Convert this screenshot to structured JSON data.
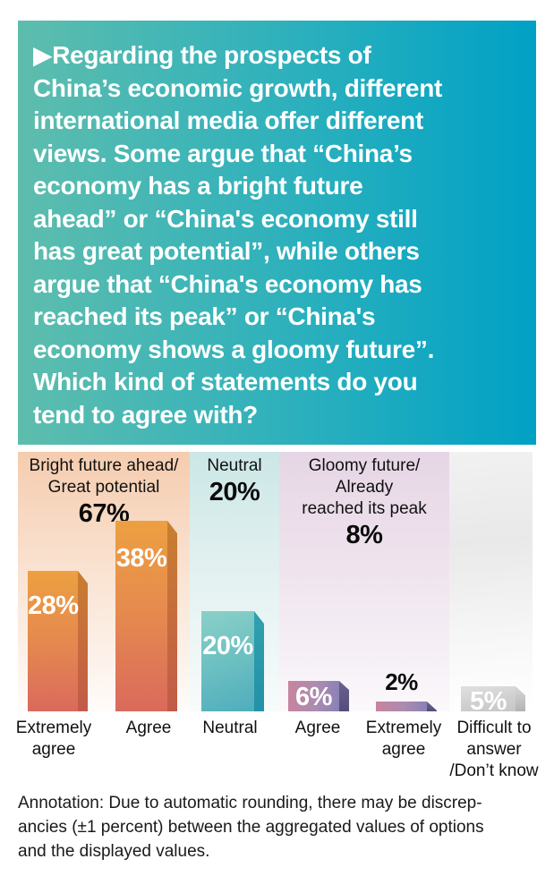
{
  "header": {
    "lines": [
      "▶Regarding the prospects of",
      "China’s economic growth, different",
      "international media offer different",
      "views. Some argue that “China’s",
      "economy has a bright future",
      "ahead” or “China's economy still",
      "has great potential”, while others",
      "argue that “China's economy has",
      "reached its peak” or “China's",
      "economy shows a gloomy future”.",
      "Which kind of statements do you",
      "tend to agree with?"
    ]
  },
  "chart": {
    "groups": [
      {
        "line1": "Bright future ahead/",
        "line2": "Great potential",
        "pct": "67%"
      },
      {
        "line1": "Neutral",
        "pct": "20%"
      },
      {
        "line1": "Gloomy future/ Already",
        "line2": "reached its peak",
        "pct": "8%"
      }
    ],
    "bars": [
      {
        "value_label": "28%",
        "category": "Extremely\nagree"
      },
      {
        "value_label": "38%",
        "category": "Agree"
      },
      {
        "value_label": "20%",
        "category": "Neutral"
      },
      {
        "value_label": "6%",
        "category": "Agree"
      },
      {
        "value_label": "2%",
        "category": "Extremely\nagree"
      },
      {
        "value_label": "5%",
        "category": "Difficult to\nanswer\n/Don’t know"
      }
    ]
  },
  "annotation": {
    "text": "Annotation: Due to automatic rounding, there may be discrep-\nancies (±1 percent) between the aggregated values of options\nand the displayed values."
  },
  "colors": {
    "header_gradient_left": "#5ebdad",
    "header_gradient_right": "#00a1c5",
    "header_text": "#ffffff",
    "panel_positive": "#f5ccaf",
    "panel_neutral": "#cbe7e6",
    "panel_negative": "#e6d6e5",
    "panel_dontknow": "#ededed",
    "bar_positive_top": "#eda041",
    "bar_positive_bottom": "#da6a5c",
    "bar_neutral": "#5cb6be",
    "bar_negative_left": "#c9849f",
    "bar_negative_right": "#8a80b5",
    "bar_dontknow": "#cfcfcf",
    "label_text": "#111111"
  },
  "chart_data": {
    "type": "bar",
    "title": "Regarding the prospects of China’s economic growth, different international media offer different views. Some argue that “China’s economy has a bright future ahead” or “China's economy still has great potential”, while others argue that “China's economy has reached its peak” or “China's economy shows a gloomy future”. Which kind of statements do you tend to agree with?",
    "unit": "percent",
    "categories": [
      "Extremely agree",
      "Agree",
      "Neutral",
      "Agree",
      "Extremely agree",
      "Difficult to answer /Don’t know"
    ],
    "values": [
      28,
      38,
      20,
      6,
      2,
      5
    ],
    "groups": [
      {
        "name": "Bright future ahead/ Great potential",
        "total_pct": 67,
        "members": [
          "Extremely agree",
          "Agree"
        ],
        "theme": "orange"
      },
      {
        "name": "Neutral",
        "total_pct": 20,
        "members": [
          "Neutral"
        ],
        "theme": "teal"
      },
      {
        "name": "Gloomy future/ Already reached its peak",
        "total_pct": 8,
        "members": [
          "Agree",
          "Extremely agree"
        ],
        "theme": "purple"
      },
      {
        "name": "Difficult to answer /Don’t know",
        "total_pct": 5,
        "members": [
          "Difficult to answer /Don’t know"
        ],
        "theme": "gray"
      }
    ],
    "ylim": [
      0,
      40
    ],
    "grid": false,
    "axis_shown": false,
    "value_labels_shown": true,
    "legend_position": "none",
    "footnote": "Annotation: Due to automatic rounding, there may be discrepancies (±1 percent) between the aggregated values of options and the displayed values."
  }
}
